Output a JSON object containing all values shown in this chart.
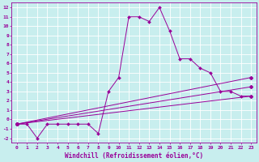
{
  "xlabel": "Windchill (Refroidissement éolien,°C)",
  "xlim": [
    -0.5,
    23.5
  ],
  "ylim": [
    -2.5,
    12.5
  ],
  "xticks": [
    0,
    1,
    2,
    3,
    4,
    5,
    6,
    7,
    8,
    9,
    10,
    11,
    12,
    13,
    14,
    15,
    16,
    17,
    18,
    19,
    20,
    21,
    22,
    23
  ],
  "yticks": [
    -2,
    -1,
    0,
    1,
    2,
    3,
    4,
    5,
    6,
    7,
    8,
    9,
    10,
    11,
    12
  ],
  "background_color": "#c8eeee",
  "grid_color": "#aadddd",
  "line_color": "#990099",
  "main_x": [
    0,
    1,
    2,
    3,
    4,
    5,
    6,
    7,
    8,
    9,
    10,
    11,
    12,
    13,
    14,
    15,
    16,
    17,
    18,
    19,
    20,
    21,
    22,
    23
  ],
  "main_y": [
    -0.5,
    -0.5,
    -2.0,
    -0.5,
    -0.5,
    -0.5,
    -0.5,
    -0.5,
    -1.5,
    3.0,
    4.5,
    11.0,
    11.0,
    10.5,
    12.0,
    9.5,
    6.5,
    6.5,
    5.5,
    5.0,
    3.0,
    3.0,
    2.5,
    2.5
  ],
  "line2_x": [
    0,
    23
  ],
  "line2_y": [
    -0.5,
    4.5
  ],
  "line3_x": [
    0,
    23
  ],
  "line3_y": [
    -0.5,
    3.5
  ],
  "line4_x": [
    0,
    23
  ],
  "line4_y": [
    -0.5,
    2.5
  ],
  "marker": "D",
  "markersize": 2.0,
  "linewidth": 0.7,
  "tick_fontsize": 4.5,
  "xlabel_fontsize": 5.5
}
